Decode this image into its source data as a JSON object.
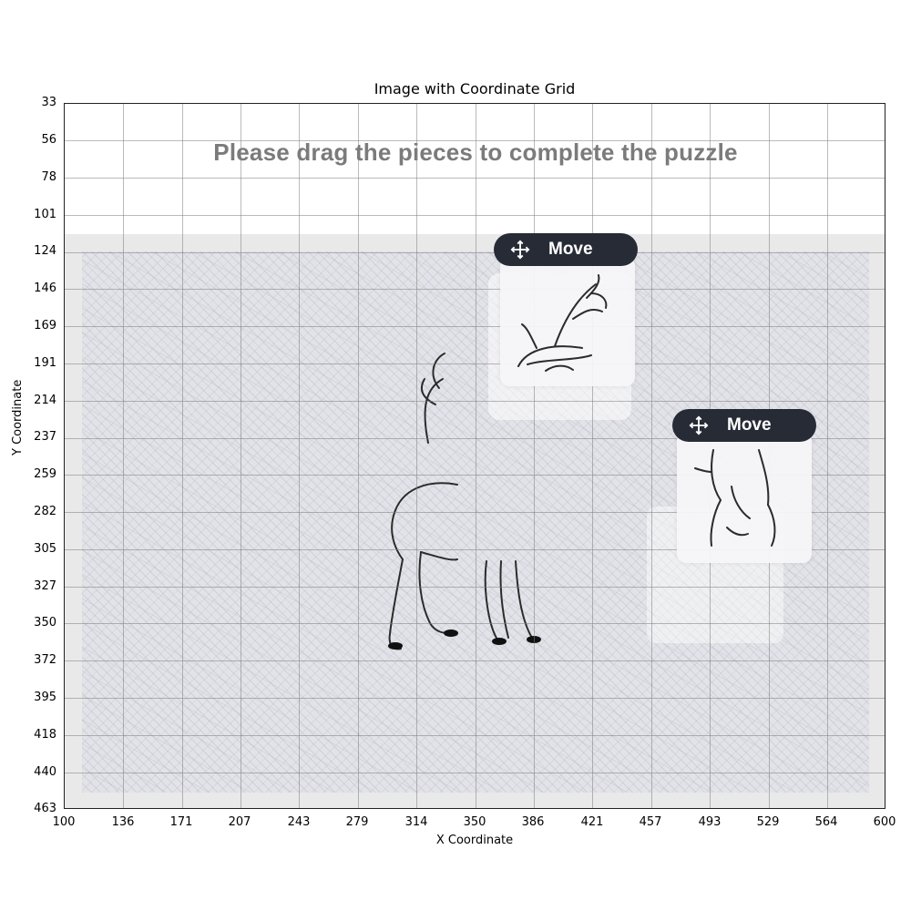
{
  "figure": {
    "title": "Image with Coordinate Grid",
    "xlabel": "X Coordinate",
    "ylabel": "Y Coordinate",
    "x_ticks": [
      "100",
      "136",
      "171",
      "207",
      "243",
      "279",
      "314",
      "350",
      "386",
      "421",
      "457",
      "493",
      "529",
      "564",
      "600"
    ],
    "y_ticks": [
      "33",
      "56",
      "78",
      "101",
      "124",
      "146",
      "169",
      "191",
      "214",
      "237",
      "259",
      "282",
      "305",
      "327",
      "350",
      "372",
      "395",
      "418",
      "440",
      "463"
    ]
  },
  "puzzle": {
    "instruction": "Please drag the pieces to complete the puzzle",
    "pieces": [
      {
        "handle_label": "Move",
        "handle_icon": "move-cross-icon",
        "content": "deer-antlers-piece"
      },
      {
        "handle_label": "Move",
        "handle_icon": "move-cross-icon",
        "content": "deer-chest-piece"
      }
    ],
    "board_image": "deer-sketch-on-patterned-background"
  },
  "colors": {
    "handle_bg": "#262b35",
    "instruction_text": "#7b7b7b",
    "board_bg": "#e9e9ea"
  }
}
